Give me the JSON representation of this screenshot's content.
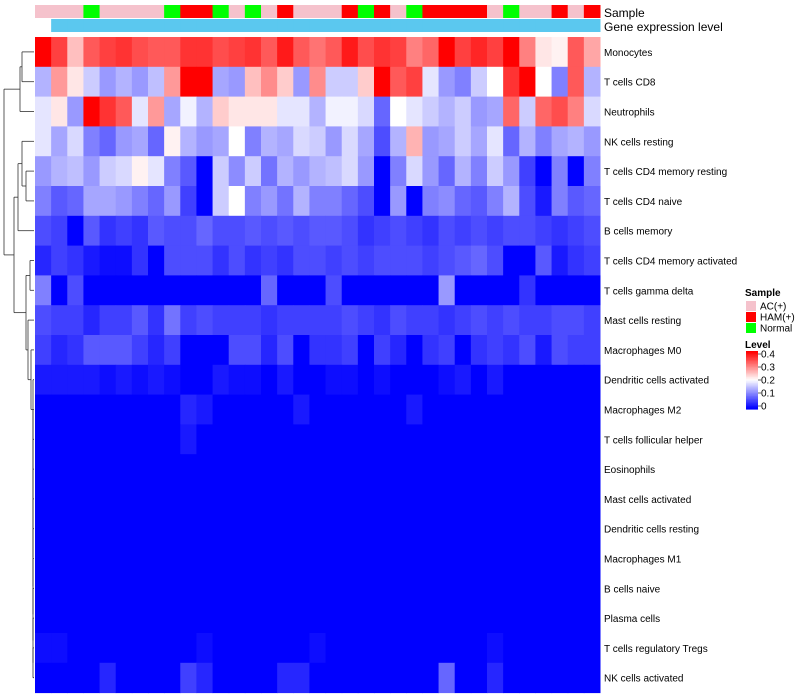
{
  "chart_data": {
    "type": "heatmap",
    "title": "",
    "annotation_labels": {
      "sample": "Sample",
      "expression": "Gene expression level"
    },
    "legend": {
      "sample_title": "Sample",
      "sample_groups": [
        {
          "name": "AC(+)",
          "color": "#f5c2cc"
        },
        {
          "name": "HAM(+)",
          "color": "#ff0000"
        },
        {
          "name": "Normal",
          "color": "#00ff00"
        }
      ],
      "level_title": "Level",
      "level_ticks": [
        "0.4",
        "0.3",
        "0.2",
        "0.1",
        "0"
      ],
      "level_range": [
        0,
        0.4
      ]
    },
    "colors": {
      "low": "#0000ff",
      "mid": "#ffffff",
      "high": "#ff0000",
      "expression_bar": "#5bc8ef"
    },
    "samples": [
      "A",
      "A",
      "A",
      "N",
      "A",
      "A",
      "A",
      "A",
      "N",
      "H",
      "H",
      "N",
      "A",
      "N",
      "A",
      "H",
      "A",
      "A",
      "A",
      "H",
      "N",
      "H",
      "A",
      "N",
      "H",
      "H",
      "H",
      "H",
      "A",
      "N",
      "A",
      "A",
      "H",
      "A",
      "H"
    ],
    "rows": [
      {
        "name": "Monocytes",
        "values": [
          0.4,
          0.35,
          0.25,
          0.33,
          0.35,
          0.36,
          0.34,
          0.33,
          0.33,
          0.36,
          0.36,
          0.34,
          0.35,
          0.36,
          0.33,
          0.38,
          0.33,
          0.31,
          0.33,
          0.38,
          0.34,
          0.36,
          0.35,
          0.3,
          0.32,
          0.4,
          0.35,
          0.37,
          0.35,
          0.4,
          0.3,
          0.22,
          0.21,
          0.33,
          0.27
        ]
      },
      {
        "name": "T cells CD8",
        "values": [
          0.14,
          0.28,
          0.22,
          0.16,
          0.12,
          0.14,
          0.12,
          0.15,
          0.28,
          0.4,
          0.4,
          0.13,
          0.12,
          0.25,
          0.29,
          0.24,
          0.12,
          0.29,
          0.16,
          0.16,
          0.24,
          0.4,
          0.33,
          0.35,
          0.18,
          0.12,
          0.1,
          0.16,
          0.2,
          0.36,
          0.4,
          0.2,
          0.1,
          0.33,
          0.14
        ]
      },
      {
        "name": "Neutrophils",
        "values": [
          0.18,
          0.22,
          0.12,
          0.4,
          0.36,
          0.33,
          0.18,
          0.28,
          0.13,
          0.19,
          0.14,
          0.24,
          0.22,
          0.22,
          0.22,
          0.18,
          0.18,
          0.14,
          0.19,
          0.19,
          0.17,
          0.08,
          0.2,
          0.18,
          0.16,
          0.14,
          0.16,
          0.12,
          0.13,
          0.32,
          0.16,
          0.32,
          0.34,
          0.3,
          0.17
        ]
      },
      {
        "name": "NK cells resting",
        "values": [
          0.18,
          0.13,
          0.17,
          0.1,
          0.08,
          0.12,
          0.13,
          0.08,
          0.21,
          0.14,
          0.12,
          0.13,
          0.2,
          0.1,
          0.14,
          0.13,
          0.17,
          0.16,
          0.12,
          0.17,
          0.13,
          0.06,
          0.14,
          0.26,
          0.12,
          0.13,
          0.16,
          0.13,
          0.18,
          0.08,
          0.14,
          0.1,
          0.13,
          0.14,
          0.12
        ]
      },
      {
        "name": "T cells CD4 memory resting",
        "values": [
          0.12,
          0.14,
          0.15,
          0.12,
          0.16,
          0.17,
          0.21,
          0.18,
          0.1,
          0.07,
          0.0,
          0.16,
          0.11,
          0.16,
          0.09,
          0.14,
          0.12,
          0.14,
          0.15,
          0.17,
          0.12,
          0.0,
          0.1,
          0.17,
          0.12,
          0.08,
          0.14,
          0.1,
          0.16,
          0.12,
          0.05,
          0.0,
          0.1,
          0.0,
          0.1
        ]
      },
      {
        "name": "T cells CD4 naive",
        "values": [
          0.1,
          0.07,
          0.08,
          0.13,
          0.13,
          0.12,
          0.1,
          0.08,
          0.12,
          0.05,
          0.0,
          0.16,
          0.2,
          0.1,
          0.12,
          0.09,
          0.14,
          0.1,
          0.1,
          0.08,
          0.06,
          0.0,
          0.12,
          0.0,
          0.1,
          0.11,
          0.08,
          0.07,
          0.1,
          0.14,
          0.06,
          0.02,
          0.1,
          0.07,
          0.08
        ]
      },
      {
        "name": "B cells memory",
        "values": [
          0.06,
          0.05,
          0.0,
          0.07,
          0.04,
          0.05,
          0.04,
          0.07,
          0.06,
          0.06,
          0.08,
          0.06,
          0.06,
          0.07,
          0.06,
          0.07,
          0.06,
          0.07,
          0.07,
          0.06,
          0.04,
          0.05,
          0.06,
          0.05,
          0.04,
          0.06,
          0.05,
          0.06,
          0.05,
          0.06,
          0.06,
          0.05,
          0.04,
          0.05,
          0.06
        ]
      },
      {
        "name": "T cells CD4 memory activated",
        "values": [
          0.03,
          0.05,
          0.04,
          0.02,
          0.01,
          0.01,
          0.04,
          0.0,
          0.06,
          0.06,
          0.06,
          0.04,
          0.06,
          0.04,
          0.05,
          0.04,
          0.06,
          0.06,
          0.05,
          0.06,
          0.05,
          0.06,
          0.06,
          0.06,
          0.05,
          0.06,
          0.07,
          0.08,
          0.06,
          0.0,
          0.0,
          0.07,
          0.02,
          0.04,
          0.05
        ]
      },
      {
        "name": "T cells gamma delta",
        "values": [
          0.1,
          0.0,
          0.06,
          0.0,
          0.0,
          0.0,
          0.0,
          0.0,
          0.0,
          0.0,
          0.0,
          0.0,
          0.0,
          0.0,
          0.08,
          0.0,
          0.0,
          0.0,
          0.06,
          0.0,
          0.0,
          0.0,
          0.0,
          0.0,
          0.0,
          0.12,
          0.0,
          0.0,
          0.0,
          0.0,
          0.04,
          0.0,
          0.0,
          0.0,
          0.0
        ]
      },
      {
        "name": "Mast cells resting",
        "values": [
          0.06,
          0.05,
          0.05,
          0.03,
          0.05,
          0.05,
          0.07,
          0.04,
          0.09,
          0.05,
          0.06,
          0.05,
          0.05,
          0.05,
          0.04,
          0.05,
          0.05,
          0.05,
          0.05,
          0.06,
          0.05,
          0.04,
          0.06,
          0.05,
          0.05,
          0.04,
          0.05,
          0.06,
          0.05,
          0.06,
          0.05,
          0.05,
          0.06,
          0.06,
          0.05
        ]
      },
      {
        "name": "Macrophages M0",
        "values": [
          0.05,
          0.03,
          0.04,
          0.07,
          0.07,
          0.07,
          0.05,
          0.03,
          0.05,
          0.0,
          0.0,
          0.0,
          0.06,
          0.06,
          0.03,
          0.06,
          0.0,
          0.04,
          0.04,
          0.05,
          0.0,
          0.05,
          0.03,
          0.0,
          0.04,
          0.05,
          0.0,
          0.04,
          0.05,
          0.04,
          0.06,
          0.02,
          0.06,
          0.05,
          0.05
        ]
      },
      {
        "name": "Dendritic cells activated",
        "values": [
          0.02,
          0.02,
          0.02,
          0.02,
          0.01,
          0.02,
          0.01,
          0.02,
          0.01,
          0.0,
          0.0,
          0.02,
          0.01,
          0.01,
          0.0,
          0.02,
          0.0,
          0.0,
          0.01,
          0.01,
          0.0,
          0.01,
          0.0,
          0.0,
          0.0,
          0.01,
          0.02,
          0.0,
          0.02,
          0.0,
          0.0,
          0.0,
          0.0,
          0.0,
          0.0
        ]
      },
      {
        "name": "Macrophages M2",
        "values": [
          0.0,
          0.0,
          0.0,
          0.0,
          0.0,
          0.0,
          0.0,
          0.0,
          0.0,
          0.03,
          0.02,
          0.0,
          0.0,
          0.0,
          0.0,
          0.0,
          0.02,
          0.0,
          0.0,
          0.0,
          0.0,
          0.0,
          0.0,
          0.02,
          0.0,
          0.0,
          0.0,
          0.0,
          0.0,
          0.0,
          0.0,
          0.0,
          0.0,
          0.0,
          0.0
        ]
      },
      {
        "name": "T cells follicular helper",
        "values": [
          0.0,
          0.0,
          0.0,
          0.0,
          0.0,
          0.0,
          0.0,
          0.0,
          0.0,
          0.02,
          0.0,
          0.0,
          0.0,
          0.0,
          0.0,
          0.0,
          0.0,
          0.0,
          0.0,
          0.0,
          0.0,
          0.0,
          0.0,
          0.0,
          0.0,
          0.0,
          0.0,
          0.0,
          0.0,
          0.0,
          0.0,
          0.0,
          0.0,
          0.0,
          0.0
        ]
      },
      {
        "name": "Eosinophils",
        "values": [
          0,
          0,
          0,
          0,
          0,
          0,
          0,
          0,
          0,
          0,
          0,
          0,
          0,
          0,
          0,
          0,
          0,
          0,
          0,
          0,
          0,
          0,
          0,
          0,
          0,
          0,
          0,
          0,
          0,
          0,
          0,
          0,
          0,
          0,
          0
        ]
      },
      {
        "name": "Mast cells activated",
        "values": [
          0,
          0,
          0,
          0,
          0,
          0,
          0,
          0,
          0,
          0,
          0,
          0,
          0,
          0,
          0,
          0,
          0,
          0,
          0,
          0,
          0,
          0,
          0,
          0,
          0,
          0,
          0,
          0,
          0,
          0,
          0,
          0,
          0,
          0,
          0
        ]
      },
      {
        "name": "Dendritic cells resting",
        "values": [
          0,
          0,
          0,
          0,
          0,
          0,
          0,
          0,
          0,
          0,
          0,
          0,
          0,
          0,
          0,
          0,
          0,
          0,
          0,
          0,
          0,
          0,
          0,
          0,
          0,
          0,
          0,
          0,
          0,
          0,
          0,
          0,
          0,
          0,
          0
        ]
      },
      {
        "name": "Macrophages M1",
        "values": [
          0,
          0,
          0,
          0,
          0,
          0,
          0,
          0,
          0,
          0,
          0,
          0,
          0,
          0,
          0,
          0,
          0,
          0,
          0,
          0,
          0,
          0,
          0,
          0,
          0,
          0,
          0,
          0,
          0,
          0,
          0,
          0,
          0,
          0,
          0
        ]
      },
      {
        "name": "B cells naive",
        "values": [
          0,
          0,
          0,
          0,
          0,
          0,
          0,
          0,
          0,
          0,
          0,
          0,
          0,
          0,
          0,
          0,
          0,
          0,
          0,
          0,
          0,
          0,
          0,
          0,
          0,
          0,
          0,
          0,
          0,
          0,
          0,
          0,
          0,
          0,
          0
        ]
      },
      {
        "name": "Plasma cells",
        "values": [
          0,
          0,
          0,
          0,
          0,
          0,
          0,
          0,
          0,
          0,
          0,
          0,
          0,
          0,
          0,
          0,
          0,
          0,
          0,
          0,
          0,
          0,
          0,
          0,
          0,
          0,
          0,
          0,
          0,
          0,
          0,
          0,
          0,
          0,
          0
        ]
      },
      {
        "name": "T cells regulatory  Tregs",
        "values": [
          0.01,
          0.01,
          0.0,
          0.0,
          0.0,
          0.0,
          0.0,
          0.0,
          0.0,
          0.0,
          0.01,
          0.0,
          0.0,
          0.0,
          0.0,
          0.0,
          0.0,
          0.01,
          0.0,
          0.0,
          0.0,
          0.0,
          0.0,
          0.0,
          0.0,
          0.0,
          0.0,
          0.0,
          0.01,
          0.0,
          0.0,
          0.0,
          0.0,
          0.0,
          0.0
        ]
      },
      {
        "name": "NK cells activated",
        "values": [
          0.0,
          0.0,
          0.0,
          0.0,
          0.03,
          0.0,
          0.0,
          0.0,
          0.0,
          0.05,
          0.03,
          0.0,
          0.0,
          0.0,
          0.0,
          0.03,
          0.03,
          0.0,
          0.0,
          0.0,
          0.0,
          0.0,
          0.0,
          0.0,
          0.0,
          0.08,
          0.0,
          0.0,
          0.03,
          0.0,
          0.0,
          0.0,
          0.0,
          0.0,
          0.0
        ]
      }
    ]
  }
}
